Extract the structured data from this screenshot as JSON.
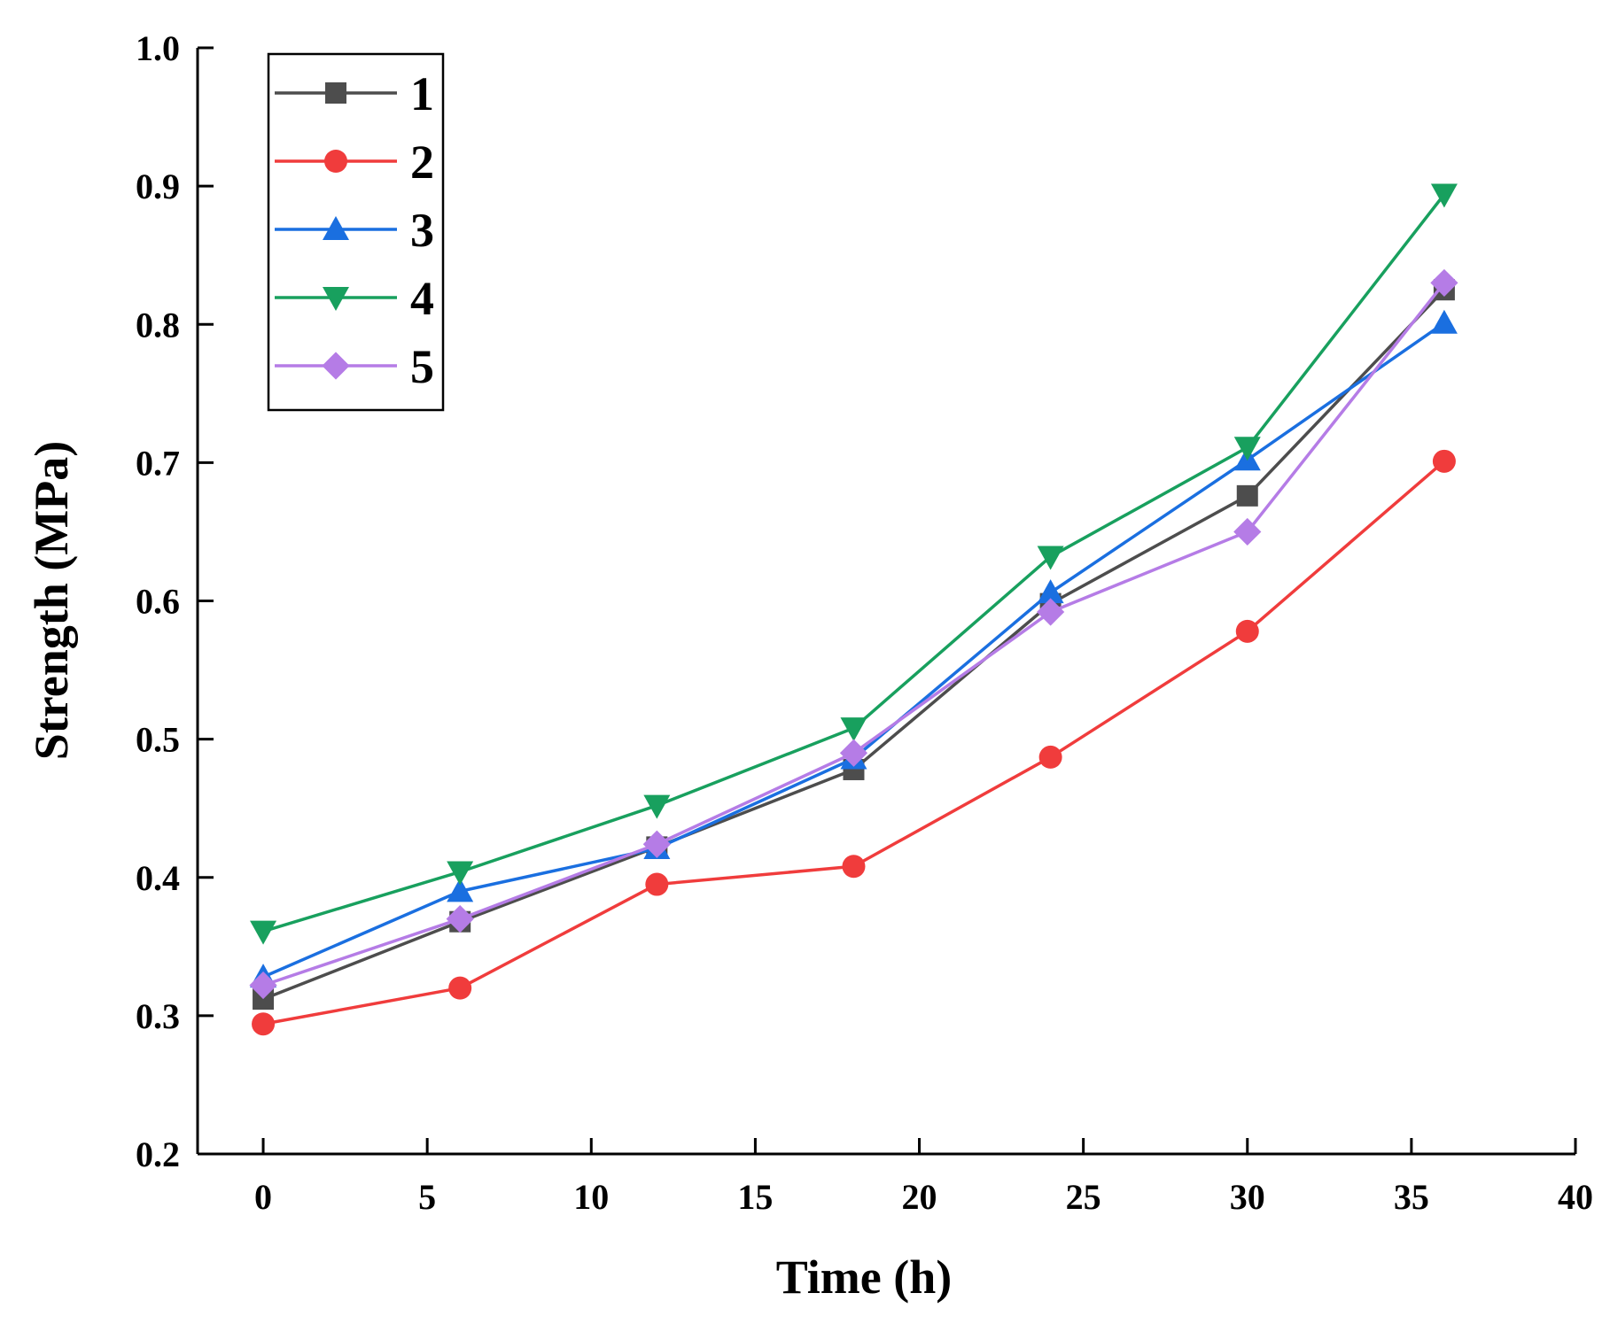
{
  "chart_data": {
    "type": "line",
    "title": "",
    "xlabel": "Time (h)",
    "ylabel": "Strength (MPa)",
    "xlim": [
      -2,
      40
    ],
    "ylim": [
      0.2,
      1.0
    ],
    "xticks": [
      0,
      5,
      10,
      15,
      20,
      25,
      30,
      35,
      40
    ],
    "xtick_labels": [
      "0",
      "5",
      "10",
      "15",
      "20",
      "25",
      "30",
      "35",
      "40"
    ],
    "yticks": [
      0.2,
      0.3,
      0.4,
      0.5,
      0.6,
      0.7,
      0.8,
      0.9,
      1.0
    ],
    "ytick_labels": [
      "0.2",
      "0.3",
      "0.4",
      "0.5",
      "0.6",
      "0.7",
      "0.8",
      "0.9",
      "1.0"
    ],
    "grid": false,
    "legend_position": "top-left",
    "x": [
      0,
      6,
      12,
      18,
      24,
      30,
      36
    ],
    "series": [
      {
        "name": "1",
        "color": "#4d4d4d",
        "marker": "square",
        "values": [
          0.312,
          0.368,
          0.422,
          0.478,
          0.598,
          0.676,
          0.825
        ]
      },
      {
        "name": "2",
        "color": "#f03c3c",
        "marker": "circle",
        "values": [
          0.294,
          0.32,
          0.395,
          0.408,
          0.487,
          0.578,
          0.701
        ]
      },
      {
        "name": "3",
        "color": "#1a6fe0",
        "marker": "triangle-up",
        "values": [
          0.328,
          0.39,
          0.421,
          0.486,
          0.606,
          0.702,
          0.801
        ]
      },
      {
        "name": "4",
        "color": "#18a05e",
        "marker": "triangle-down",
        "values": [
          0.361,
          0.404,
          0.452,
          0.508,
          0.632,
          0.711,
          0.894
        ]
      },
      {
        "name": "5",
        "color": "#b57ce6",
        "marker": "diamond",
        "values": [
          0.322,
          0.37,
          0.424,
          0.49,
          0.592,
          0.65,
          0.83
        ]
      }
    ]
  }
}
